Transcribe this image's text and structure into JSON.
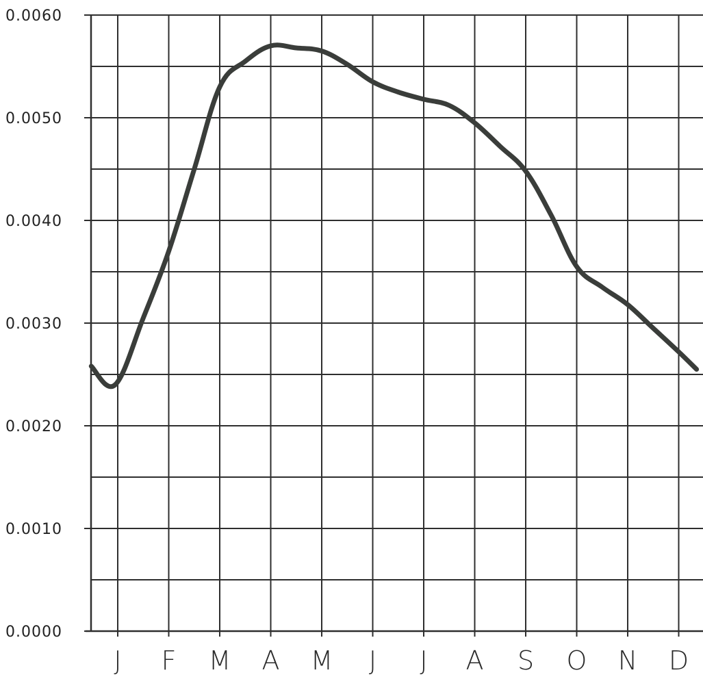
{
  "chart_data": {
    "type": "line",
    "title": "",
    "xlabel": "",
    "ylabel": "",
    "y_ticks": [
      "0.0000",
      "0.0010",
      "0.0020",
      "0.0030",
      "0.0040",
      "0.0050",
      "0.0060"
    ],
    "x_ticks": [
      "J",
      "F",
      "M",
      "A",
      "M",
      "J",
      "J",
      "A",
      "S",
      "O",
      "N",
      "D"
    ],
    "ylim": [
      0,
      0.006
    ],
    "grid": true,
    "line_color": "#3a3d3a",
    "series": [
      {
        "x": [
          -0.52,
          -0.05,
          0.5,
          1.0,
          1.5,
          2.0,
          2.5,
          3.0,
          3.5,
          4.0,
          4.5,
          5.0,
          5.5,
          6.0,
          6.5,
          7.0,
          7.5,
          8.0,
          8.5,
          9.0,
          9.5,
          10.0,
          10.5,
          11.0,
          11.35
        ],
        "y": [
          0.00258,
          0.0024,
          0.00305,
          0.0037,
          0.0045,
          0.0053,
          0.00555,
          0.0057,
          0.00568,
          0.00565,
          0.00552,
          0.00535,
          0.00525,
          0.00518,
          0.00512,
          0.00495,
          0.00472,
          0.00448,
          0.00405,
          0.00355,
          0.00335,
          0.00318,
          0.00295,
          0.00272,
          0.00255
        ]
      }
    ]
  }
}
